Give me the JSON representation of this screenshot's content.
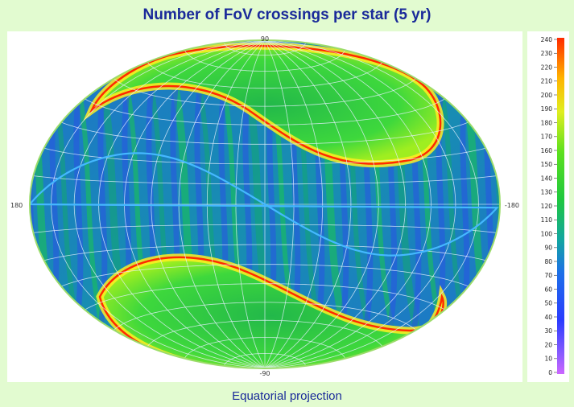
{
  "chart_data": {
    "type": "heatmap",
    "title": "Number of FoV crossings per star (5 yr)",
    "subtitle": "Equatorial projection",
    "projection": "Hammer-Aitoff",
    "axis_labels": {
      "top": "90",
      "bottom": "-90",
      "left": "180",
      "right": "-180"
    },
    "colorbar": {
      "min": 0,
      "max": 240,
      "ticks": [
        "240",
        "230",
        "220",
        "210",
        "200",
        "190",
        "180",
        "170",
        "160",
        "150",
        "140",
        "130",
        "120",
        "110",
        "100",
        "90",
        "80",
        "70",
        "60",
        "50",
        "40",
        "30",
        "20",
        "10",
        "0"
      ],
      "placement": "right"
    },
    "colors": {
      "background": "#e2fbd0",
      "title": "#1a2a9a",
      "low": "#2040e0",
      "mid": "#19c84a",
      "high": "#ffee22",
      "peak": "#ff2a00",
      "grid": "#e6f0ff",
      "ecliptic": "#44b8ff"
    },
    "grid": true
  }
}
